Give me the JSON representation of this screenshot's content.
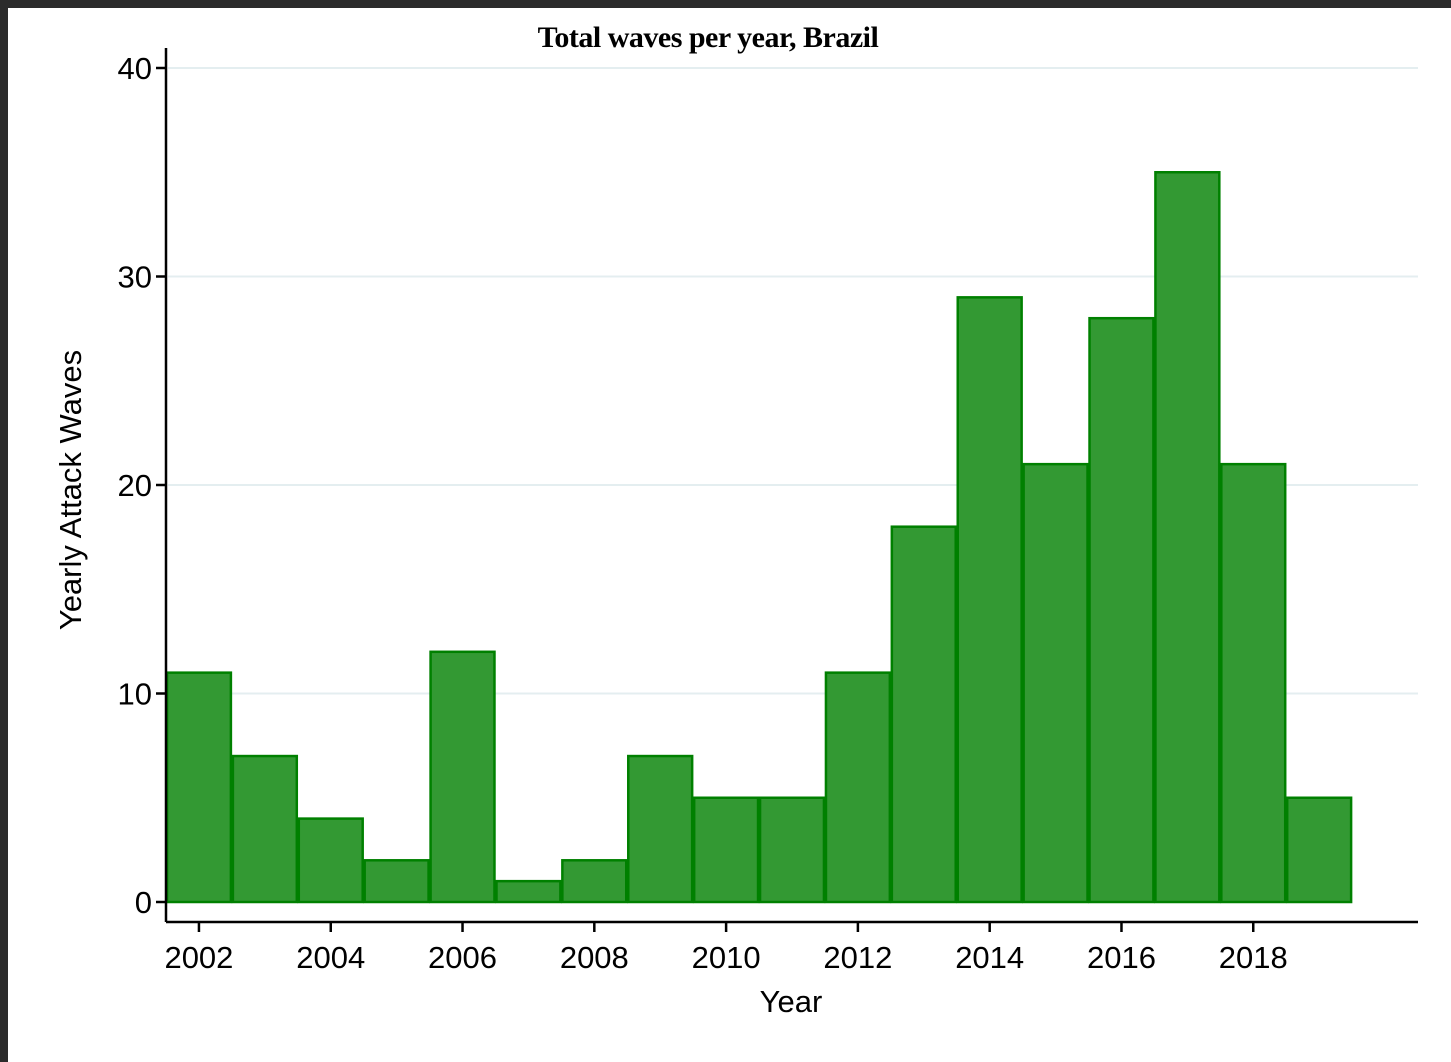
{
  "chart_data": {
    "type": "bar",
    "title": "Total waves per year, Brazil",
    "xlabel": "Year",
    "ylabel": "Yearly Attack Waves",
    "categories": [
      2002,
      2003,
      2004,
      2005,
      2006,
      2007,
      2008,
      2009,
      2010,
      2011,
      2012,
      2013,
      2014,
      2015,
      2016,
      2017,
      2018,
      2019
    ],
    "values": [
      11,
      7,
      4,
      2,
      12,
      1,
      2,
      7,
      5,
      5,
      11,
      18,
      29,
      21,
      28,
      35,
      21,
      5
    ],
    "x_ticks": [
      "2002",
      "2004",
      "2006",
      "2008",
      "2010",
      "2012",
      "2014",
      "2016",
      "2018"
    ],
    "y_ticks": [
      "0",
      "10",
      "20",
      "30",
      "40"
    ],
    "xlim": [
      2001.5,
      2020.5
    ],
    "ylim": [
      0,
      40
    ],
    "grid": true,
    "bar_color": "#339933",
    "bar_edge_color": "#008000",
    "grid_color": "#e4eef0"
  }
}
